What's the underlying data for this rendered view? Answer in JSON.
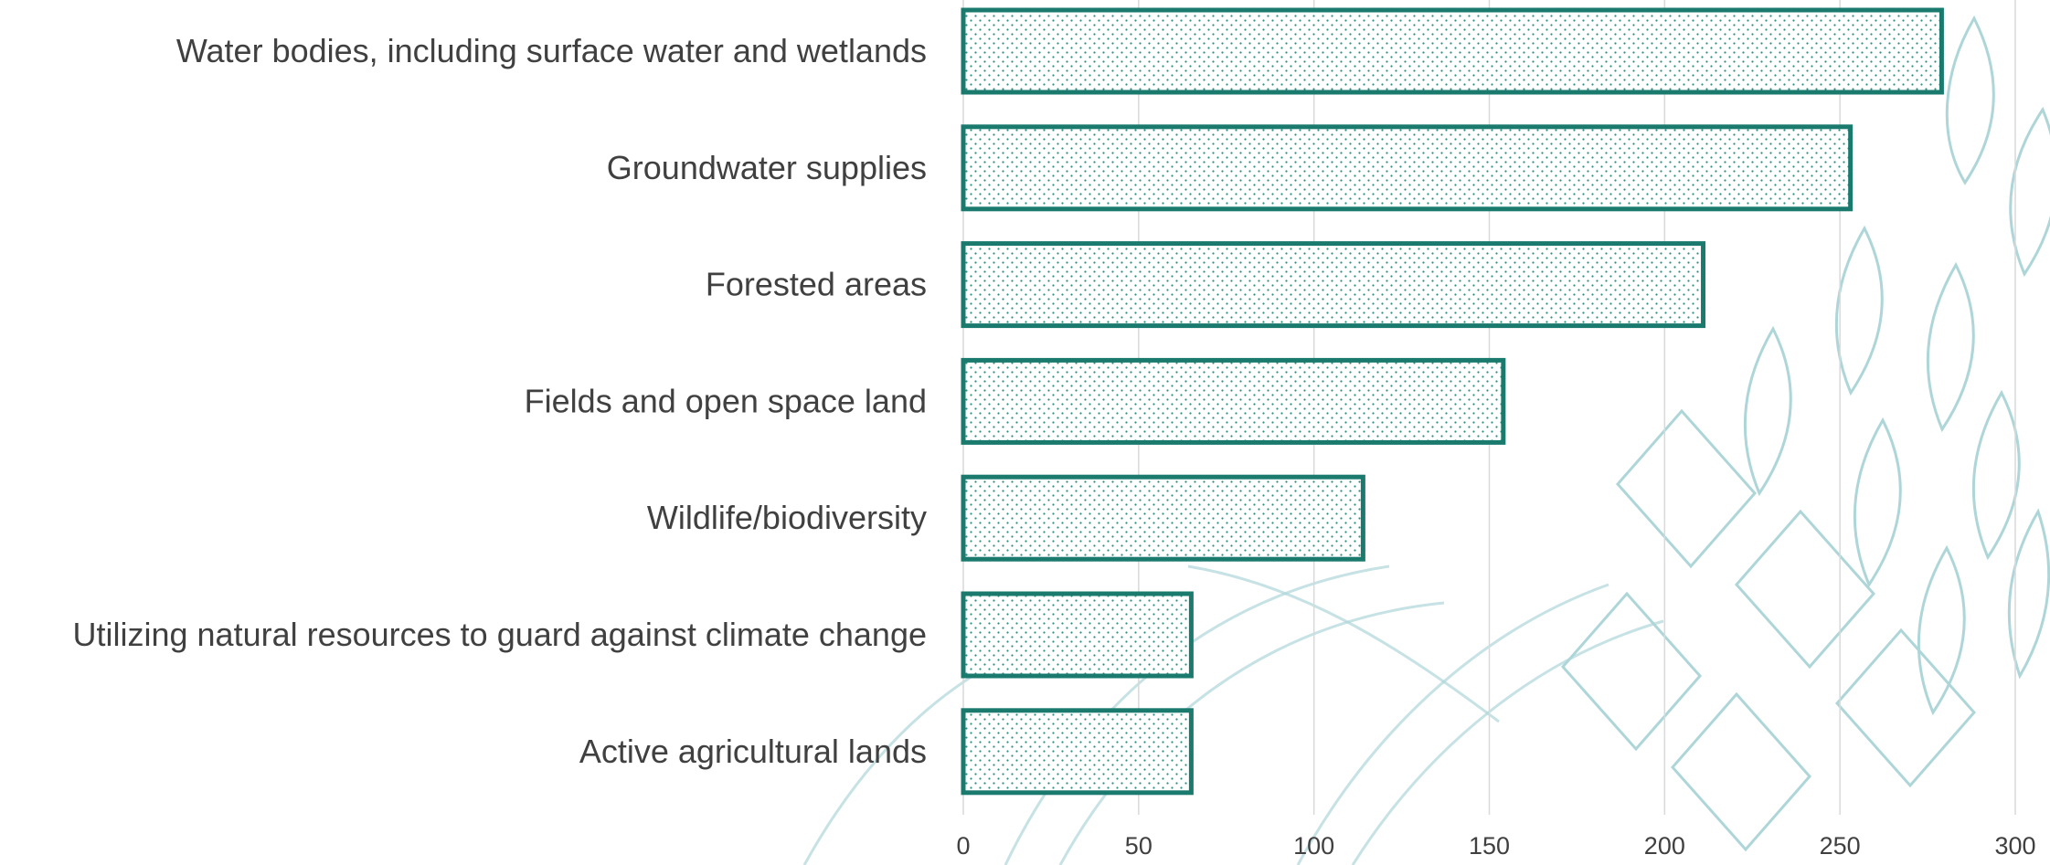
{
  "chart_data": {
    "type": "bar",
    "orientation": "horizontal",
    "title": "",
    "xlabel": "",
    "ylabel": "",
    "categories": [
      "Water bodies, including surface water and wetlands",
      "Groundwater supplies",
      "Forested areas",
      "Fields and open space land",
      "Wildlife/biodiversity",
      "Utilizing natural resources to guard against climate change",
      "Active agricultural lands"
    ],
    "values": [
      279,
      253,
      211,
      154,
      114,
      65,
      65
    ],
    "xlim": [
      0,
      300
    ],
    "x_ticks": [
      "0",
      "50",
      "100",
      "150",
      "200",
      "250",
      "300"
    ],
    "grid": "vertical",
    "legend": "none",
    "colors": {
      "bar_stroke": "#1a7a6e",
      "bar_dot": "#2a8f80",
      "grid": "#d9d9d9",
      "text": "#404040",
      "decoration": "#aed6d8"
    }
  }
}
